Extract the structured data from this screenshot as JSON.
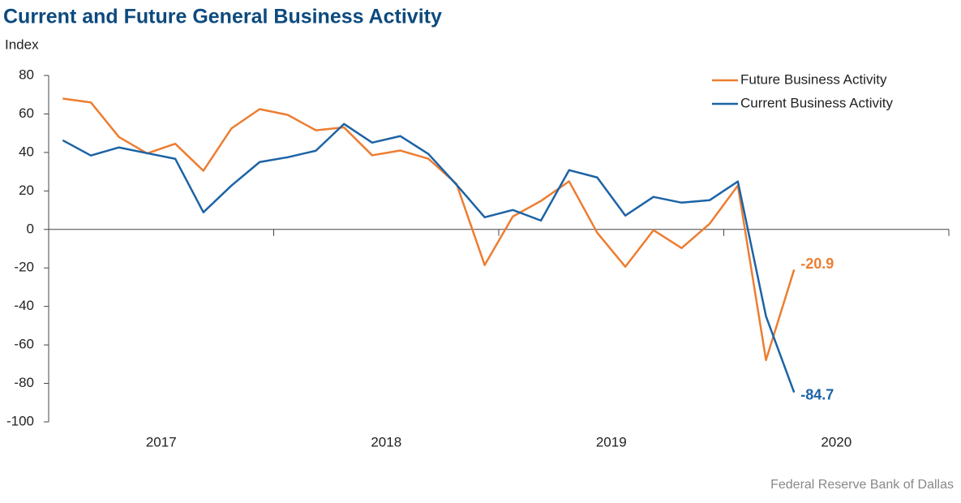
{
  "chart_data": {
    "type": "line",
    "title": "Current and Future General Business Activity",
    "y_label": "Index",
    "source": "Federal Reserve Bank of Dallas",
    "x": [
      2017.0625,
      2017.1875,
      2017.3125,
      2017.4375,
      2017.5625,
      2017.6875,
      2017.8125,
      2017.9375,
      2018.0625,
      2018.1875,
      2018.3125,
      2018.4375,
      2018.5625,
      2018.6875,
      2018.8125,
      2018.9375,
      2019.0625,
      2019.1875,
      2019.3125,
      2019.4375,
      2019.5625,
      2019.6875,
      2019.8125,
      2019.9375,
      2020.0625,
      2020.1875,
      2020.3125
    ],
    "series": [
      {
        "name": "Future Business Activity",
        "color": "#ed7d31",
        "values": [
          68,
          66,
          48,
          39.5,
          44.5,
          30.5,
          52.5,
          62.5,
          59.5,
          51.5,
          53,
          38.5,
          41,
          36.7,
          23.6,
          -18.5,
          6.7,
          14.8,
          25,
          -1.7,
          -19.4,
          -0.4,
          -9.7,
          3,
          22.8,
          -67.9,
          -20.9
        ]
      },
      {
        "name": "Current Business Activity",
        "color": "#1c63a5",
        "values": [
          46.3,
          38.4,
          42.6,
          39.6,
          36.7,
          8.9,
          22.8,
          35,
          37.5,
          40.9,
          54.8,
          45.1,
          48.5,
          39.2,
          23.2,
          6.3,
          10.1,
          4.6,
          30.8,
          27,
          7.2,
          16.9,
          13.9,
          15.2,
          24.9,
          -45.1,
          -84.7
        ]
      }
    ],
    "xlim": [
      2017,
      2021
    ],
    "xticks": [
      {
        "value": 2017.5,
        "label": "2017"
      },
      {
        "value": 2018.5,
        "label": "2018"
      },
      {
        "value": 2019.5,
        "label": "2019"
      },
      {
        "value": 2020.5,
        "label": "2020"
      }
    ],
    "x_tick_marks": [
      2018,
      2019,
      2020,
      2021
    ],
    "ylim": [
      -100,
      80
    ],
    "yticks": [
      -100,
      -80,
      -60,
      -40,
      -20,
      0,
      20,
      40,
      60,
      80
    ],
    "legend": "upper right",
    "grid": false
  }
}
